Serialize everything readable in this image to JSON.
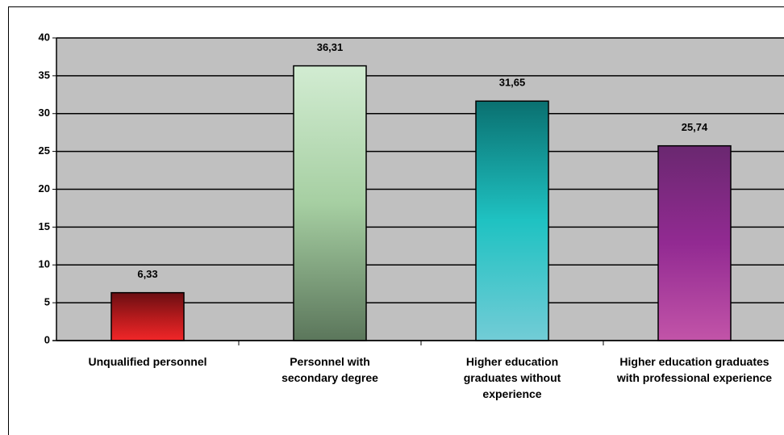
{
  "chart_data": {
    "type": "bar",
    "categories": [
      "Unqualified personnel",
      "Personnel with secondary degree",
      "Higher education graduates without experience",
      "Higher education graduates with professional experience"
    ],
    "values": [
      6.33,
      36.31,
      31.65,
      25.74
    ],
    "value_labels": [
      "6,33",
      "36,31",
      "31,65",
      "25,74"
    ],
    "colors": [
      [
        "#6a0e12",
        "#b31a1c",
        "#f22628"
      ],
      [
        "#d2ecd2",
        "#a6cfa2",
        "#5b765b"
      ],
      [
        "#0a7070",
        "#1fc2c2",
        "#72ccd6"
      ],
      [
        "#6a2870",
        "#922a92",
        "#c254a8"
      ]
    ],
    "plot_background": "#c0c0c0",
    "ylim": [
      0,
      40
    ],
    "yticks": [
      0,
      5,
      10,
      15,
      20,
      25,
      30,
      35,
      40
    ],
    "grid": true
  }
}
